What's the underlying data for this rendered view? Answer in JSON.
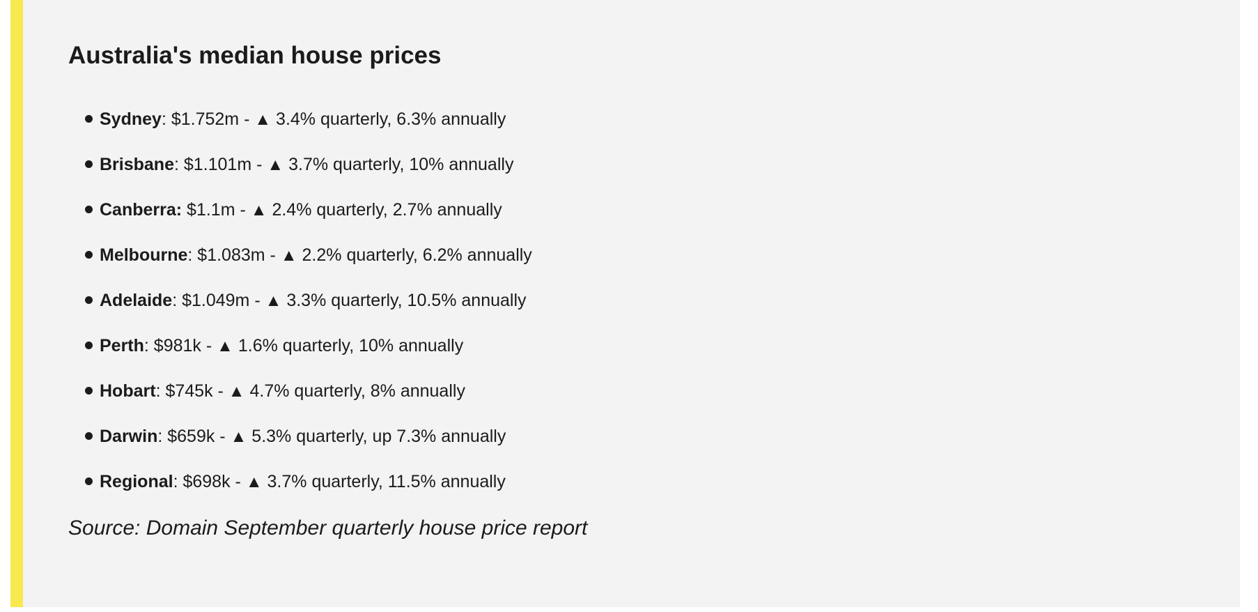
{
  "colors": {
    "highlight_bar": "#F7E94F",
    "card_background": "#F3F3F3",
    "page_background": "#FFFFFF",
    "text": "#1B1B1B"
  },
  "article": {
    "title": "Australia's median house prices",
    "bullet_items": [
      {
        "label": "Sydney",
        "pre": ": $1.752m - ",
        "trend_icon": "▲",
        "change": " 3.4% quarterly, 6.3% annually"
      },
      {
        "label": "Brisbane",
        "pre": ": $1.101m - ",
        "trend_icon": "▲",
        "change": " 3.7% quarterly, 10% annually"
      },
      {
        "label": "Canberra:",
        "pre": " $1.1m - ",
        "trend_icon": "▲",
        "change": " 2.4% quarterly, 2.7% annually"
      },
      {
        "label": "Melbourne",
        "pre": ": $1.083m - ",
        "trend_icon": "▲",
        "change": " 2.2% quarterly, 6.2% annually"
      },
      {
        "label": "Adelaide",
        "pre": ": $1.049m - ",
        "trend_icon": "▲",
        "change": " 3.3% quarterly, 10.5% annually"
      },
      {
        "label": "Perth",
        "pre": ": $981k - ",
        "trend_icon": "▲",
        "change": " 1.6% quarterly, 10% annually"
      },
      {
        "label": "Hobart",
        "pre": ": $745k - ",
        "trend_icon": "▲",
        "change": " 4.7% quarterly, 8% annually"
      },
      {
        "label": "Darwin",
        "pre": ": $659k - ",
        "trend_icon": "▲",
        "change": " 5.3% quarterly, up 7.3% annually"
      },
      {
        "label": "Regional",
        "pre": ": $698k - ",
        "trend_icon": "▲",
        "change": " 3.7% quarterly, 11.5% annually"
      }
    ],
    "source_note": "Source: Domain September quarterly house price report"
  }
}
